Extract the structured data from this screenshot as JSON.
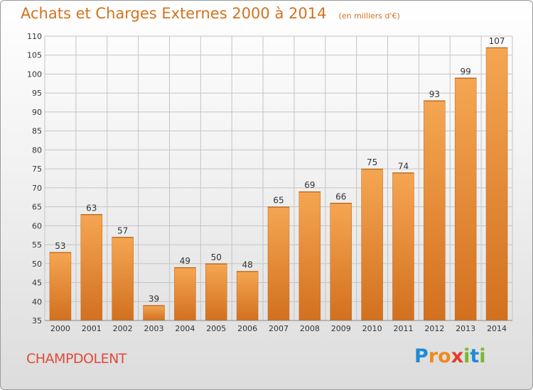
{
  "header": {
    "title": "Achats et Charges Externes 2000 à 2014",
    "subtitle": "(en milliers d'€)"
  },
  "footer": {
    "commune": "CHAMPDOLENT",
    "brand": "Proxiti",
    "brand_letters": [
      {
        "char": "P",
        "color": "#1f8ad6"
      },
      {
        "char": "r",
        "color": "#f08a1c"
      },
      {
        "char": "o",
        "color": "#f08a1c"
      },
      {
        "char": "x",
        "color": "#e53a2a"
      },
      {
        "char": "i",
        "color": "#7ab929"
      },
      {
        "char": "t",
        "color": "#1f8ad6"
      },
      {
        "char": "i",
        "color": "#7ab929"
      }
    ]
  },
  "chart_data": {
    "type": "bar",
    "title": "Achats et Charges Externes 2000 à 2014",
    "subtitle": "(en milliers d'€)",
    "xlabel": "",
    "ylabel": "",
    "categories": [
      "2000",
      "2001",
      "2002",
      "2003",
      "2004",
      "2005",
      "2006",
      "2007",
      "2008",
      "2009",
      "2010",
      "2011",
      "2012",
      "2013",
      "2014"
    ],
    "values": [
      53,
      63,
      57,
      39,
      49,
      50,
      48,
      65,
      69,
      66,
      75,
      74,
      93,
      99,
      107
    ],
    "ylim": [
      35,
      110
    ],
    "yticks": [
      35,
      40,
      45,
      50,
      55,
      60,
      65,
      70,
      75,
      80,
      85,
      90,
      95,
      100,
      105,
      110
    ],
    "grid": true,
    "legend": "none",
    "colors": {
      "bar_light": "#f5a652",
      "bar_dark": "#d2701e",
      "bar_edge": "#c5661a",
      "grid": "#c4c4c4",
      "axis_text": "#333333"
    }
  }
}
